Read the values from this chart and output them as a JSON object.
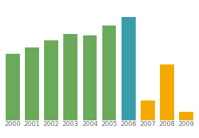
{
  "categories": [
    "2000",
    "2001",
    "2002",
    "2003",
    "2004",
    "2005",
    "2006",
    "2007",
    "2008",
    "2009"
  ],
  "values": [
    62,
    68,
    74,
    80,
    79,
    88,
    96,
    18,
    52,
    8
  ],
  "bar_colors": [
    "#6aaa5a",
    "#6aaa5a",
    "#6aaa5a",
    "#6aaa5a",
    "#6aaa5a",
    "#6aaa5a",
    "#3a9eaa",
    "#f5a800",
    "#f5a800",
    "#f5a800"
  ],
  "ylim": [
    0,
    108
  ],
  "background_color": "#ffffff",
  "grid_color": "#dddddd",
  "grid_linewidth": 0.7,
  "label_fontsize": 6.5,
  "label_color": "#666666",
  "bar_width": 0.72
}
